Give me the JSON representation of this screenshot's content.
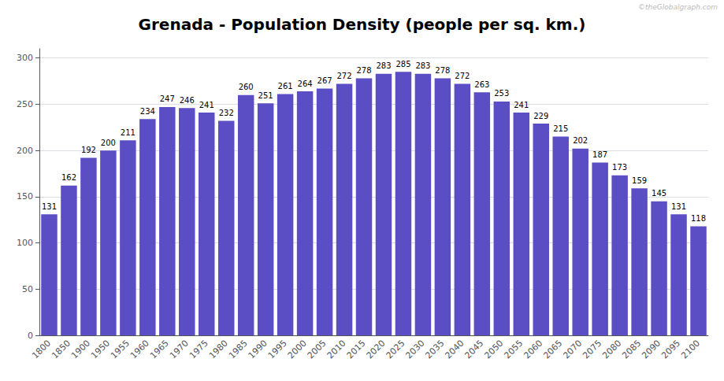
{
  "chart_data": {
    "type": "bar",
    "title": "Grenada - Population Density (people per sq. km.)",
    "categories": [
      "1800",
      "1850",
      "1900",
      "1950",
      "1955",
      "1960",
      "1965",
      "1970",
      "1975",
      "1980",
      "1985",
      "1990",
      "1995",
      "2000",
      "2005",
      "2010",
      "2015",
      "2020",
      "2025",
      "2030",
      "2035",
      "2040",
      "2045",
      "2050",
      "2055",
      "2060",
      "2065",
      "2070",
      "2075",
      "2080",
      "2085",
      "2090",
      "2095",
      "2100"
    ],
    "values": [
      131,
      162,
      192,
      200,
      211,
      234,
      247,
      246,
      241,
      232,
      260,
      251,
      261,
      264,
      267,
      272,
      278,
      283,
      285,
      283,
      278,
      272,
      263,
      253,
      241,
      229,
      215,
      202,
      187,
      173,
      159,
      145,
      131,
      118
    ],
    "color": "#5b4dc4",
    "ylim": [
      0,
      310
    ],
    "yticks": [
      0,
      50,
      100,
      150,
      200,
      250,
      300
    ],
    "grid": true,
    "data_labels": true,
    "annotations": [
      "©theGlobalgraph.com"
    ]
  }
}
